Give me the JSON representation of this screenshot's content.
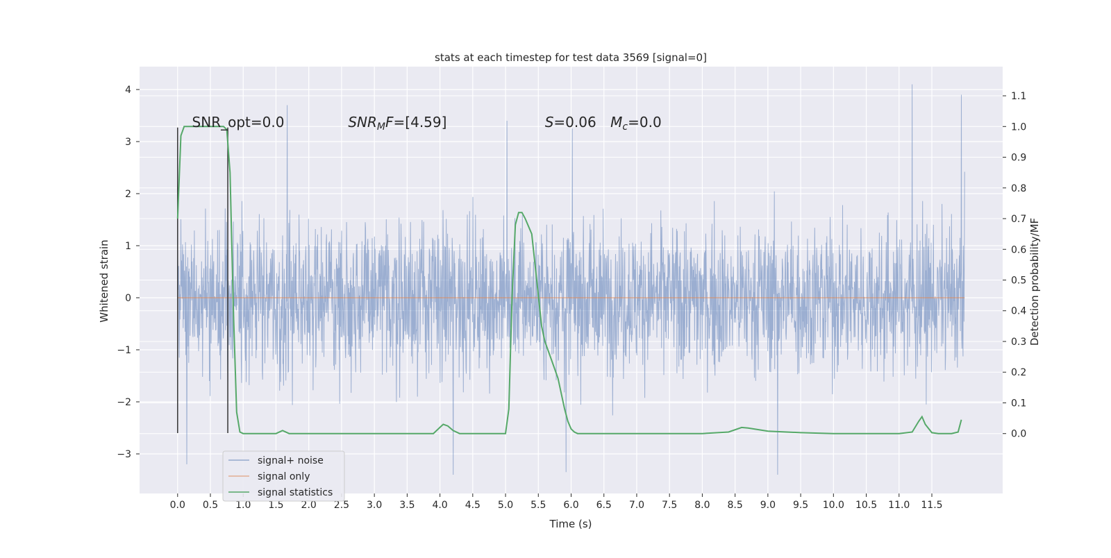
{
  "chart_data": {
    "type": "line",
    "title": "stats at each timestep for test data 3569 [signal=0]",
    "xlabel": "Time (s)",
    "ylabel": "Whitened strain",
    "y2label": "Detection probability/MF",
    "xlim": [
      -0.58,
      12.58
    ],
    "ylim": [
      -3.76,
      4.44
    ],
    "y2lim": [
      -0.195,
      1.195
    ],
    "xticks": [
      "0.0",
      "0.5",
      "1.0",
      "1.5",
      "2.0",
      "2.5",
      "3.0",
      "3.5",
      "4.0",
      "4.5",
      "5.0",
      "5.5",
      "6.0",
      "6.5",
      "7.0",
      "7.5",
      "8.0",
      "8.5",
      "9.0",
      "9.5",
      "10.0",
      "10.5",
      "11.0",
      "11.5"
    ],
    "yticks": [
      "4",
      "3",
      "2",
      "1",
      "0",
      "−1",
      "−2",
      "−3"
    ],
    "y2ticks": [
      "1.1",
      "1.0",
      "0.9",
      "0.8",
      "0.7",
      "0.6",
      "0.5",
      "0.4",
      "0.3",
      "0.2",
      "0.1",
      "0.0"
    ],
    "grid": true,
    "legend_position": "lower-left",
    "series": [
      {
        "name": "signal+ noise",
        "color": "#4c72b0",
        "kind": "dense noise trace",
        "x_range": [
          0.0,
          12.0
        ],
        "typical_band": [
          -2.6,
          2.6
        ],
        "extremes": [
          {
            "x": 0.14,
            "y": -3.2
          },
          {
            "x": 1.67,
            "y": 3.7
          },
          {
            "x": 4.2,
            "y": -3.4
          },
          {
            "x": 5.02,
            "y": 3.4
          },
          {
            "x": 5.92,
            "y": -3.35
          },
          {
            "x": 6.02,
            "y": 3.25
          },
          {
            "x": 9.15,
            "y": -3.4
          },
          {
            "x": 11.2,
            "y": 4.1
          },
          {
            "x": 11.95,
            "y": 3.9
          }
        ]
      },
      {
        "name": "signal only",
        "color": "#dd8452",
        "x": [
          0.0,
          12.0
        ],
        "y": [
          0.0,
          0.0
        ]
      },
      {
        "name": "signal statistics",
        "color": "#55a868",
        "axis": "right",
        "x": [
          0.0,
          0.05,
          0.1,
          0.2,
          0.3,
          0.4,
          0.5,
          0.6,
          0.7,
          0.75,
          0.8,
          0.85,
          0.9,
          0.95,
          1.0,
          1.5,
          1.6,
          1.7,
          2.0,
          3.0,
          3.9,
          4.05,
          4.12,
          4.2,
          4.3,
          4.5,
          5.0,
          5.05,
          5.1,
          5.15,
          5.2,
          5.25,
          5.3,
          5.4,
          5.5,
          5.55,
          5.6,
          5.7,
          5.8,
          5.9,
          5.95,
          6.0,
          6.05,
          6.1,
          6.5,
          7.0,
          7.5,
          8.0,
          8.4,
          8.6,
          8.7,
          9.0,
          9.5,
          10.0,
          10.5,
          11.0,
          11.2,
          11.3,
          11.35,
          11.4,
          11.5,
          11.6,
          11.8,
          11.9,
          11.95
        ],
        "y": [
          0.7,
          0.97,
          1.0,
          1.0,
          1.0,
          1.0,
          1.0,
          1.0,
          1.0,
          0.99,
          0.85,
          0.4,
          0.07,
          0.005,
          0.0,
          0.0,
          0.01,
          0.0,
          0.0,
          0.0,
          0.0,
          0.03,
          0.025,
          0.01,
          0.0,
          0.0,
          0.0,
          0.08,
          0.45,
          0.68,
          0.72,
          0.72,
          0.7,
          0.65,
          0.45,
          0.35,
          0.3,
          0.24,
          0.18,
          0.08,
          0.04,
          0.015,
          0.005,
          0.0,
          0.0,
          0.0,
          0.0,
          0.0,
          0.005,
          0.02,
          0.018,
          0.008,
          0.003,
          0.0,
          0.0,
          0.0,
          0.005,
          0.04,
          0.055,
          0.03,
          0.003,
          0.0,
          0.0,
          0.005,
          0.045
        ]
      }
    ],
    "vertical_markers": [
      {
        "x": 0.0,
        "y_from": -2.6,
        "y_to": 3.27,
        "color": "#333333"
      },
      {
        "x": 0.765,
        "y_from": -2.6,
        "y_to": 3.27,
        "color": "#333333"
      }
    ],
    "annotations": [
      {
        "text": "SNR_opt=0.0",
        "x": 0.22,
        "y": 3.27
      },
      {
        "text": "SNRMF=[4.59]",
        "x": 2.6,
        "y": 3.27
      },
      {
        "text": "S=0.06",
        "x": 5.6,
        "y": 3.27
      },
      {
        "text": "Mc=0.0",
        "x": 6.6,
        "y": 3.27
      }
    ]
  },
  "legend": {
    "items": [
      {
        "label": "signal+ noise",
        "color": "#4c72b0"
      },
      {
        "label": "signal only",
        "color": "#dd8452"
      },
      {
        "label": "signal statistics",
        "color": "#55a868"
      }
    ]
  }
}
